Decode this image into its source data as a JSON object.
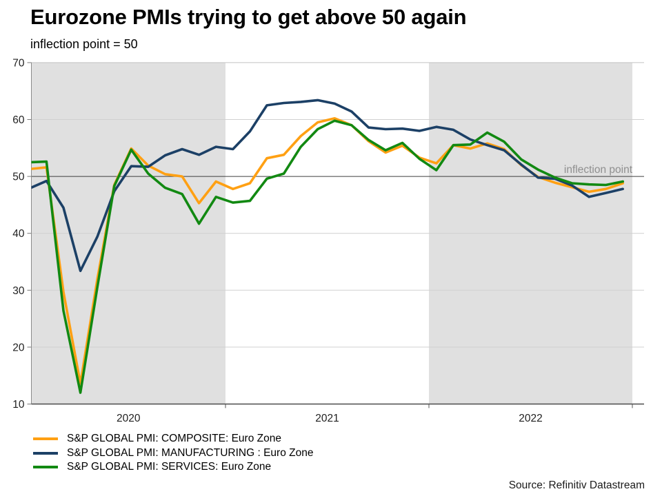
{
  "title": "Eurozone PMIs trying to get above 50 again",
  "subtitle": "inflection point = 50",
  "source": "Source: Refinitiv Datastream",
  "chart_data": {
    "type": "line",
    "title": "Eurozone PMIs trying to get above 50 again",
    "subtitle": "inflection point = 50",
    "xlabel": "",
    "ylabel": "",
    "ylim": [
      10,
      70
    ],
    "yticks": [
      10,
      20,
      30,
      40,
      50,
      60,
      70
    ],
    "x_year_labels": [
      "2020",
      "2021",
      "2022"
    ],
    "shaded_year_bands": [
      2020,
      2022
    ],
    "band_color": "#E0E0E0",
    "grid": "horizontal-only",
    "legend_position": "bottom-left",
    "refline": {
      "value": 50,
      "label": "inflection point"
    },
    "x_months": [
      "2019-12",
      "2020-01",
      "2020-02",
      "2020-03",
      "2020-04",
      "2020-05",
      "2020-06",
      "2020-07",
      "2020-08",
      "2020-09",
      "2020-10",
      "2020-11",
      "2020-12",
      "2021-01",
      "2021-02",
      "2021-03",
      "2021-04",
      "2021-05",
      "2021-06",
      "2021-07",
      "2021-08",
      "2021-09",
      "2021-10",
      "2021-11",
      "2021-12",
      "2022-01",
      "2022-02",
      "2022-03",
      "2022-04",
      "2022-05",
      "2022-06",
      "2022-07",
      "2022-08",
      "2022-09",
      "2022-10",
      "2022-11",
      "2022-12"
    ],
    "series": [
      {
        "key": "composite",
        "name": "S&P GLOBAL PMI: COMPOSITE: Euro Zone",
        "color": "#FFA013",
        "values": [
          50.9,
          51.3,
          51.6,
          29.7,
          13.6,
          31.9,
          48.5,
          54.9,
          51.9,
          50.4,
          50.0,
          45.3,
          49.1,
          47.8,
          48.8,
          53.2,
          53.8,
          57.1,
          59.5,
          60.2,
          59.0,
          56.2,
          54.2,
          55.4,
          53.3,
          52.3,
          55.5,
          54.9,
          55.8,
          54.8,
          52.0,
          49.9,
          48.9,
          48.1,
          47.3,
          47.8,
          48.8
        ]
      },
      {
        "key": "manufacturing",
        "name": "S&P GLOBAL PMI: MANUFACTURING : Euro Zone",
        "color": "#1C4066",
        "values": [
          46.3,
          47.9,
          49.2,
          44.5,
          33.4,
          39.4,
          47.4,
          51.8,
          51.7,
          53.7,
          54.8,
          53.8,
          55.2,
          54.8,
          57.9,
          62.5,
          62.9,
          63.1,
          63.4,
          62.8,
          61.4,
          58.6,
          58.3,
          58.4,
          58.0,
          58.7,
          58.2,
          56.5,
          55.5,
          54.6,
          52.1,
          49.8,
          49.6,
          48.4,
          46.4,
          47.1,
          47.8
        ]
      },
      {
        "key": "services",
        "name": "S&P GLOBAL PMI: SERVICES: Euro Zone",
        "color": "#128912",
        "values": [
          52.8,
          52.5,
          52.6,
          26.4,
          12.0,
          30.5,
          48.3,
          54.7,
          50.5,
          48.0,
          46.9,
          41.7,
          46.4,
          45.4,
          45.7,
          49.6,
          50.5,
          55.2,
          58.3,
          59.8,
          59.0,
          56.4,
          54.6,
          55.9,
          53.1,
          51.1,
          55.5,
          55.6,
          57.7,
          56.1,
          53.0,
          51.2,
          49.8,
          48.8,
          48.6,
          48.5,
          49.1
        ]
      }
    ]
  }
}
